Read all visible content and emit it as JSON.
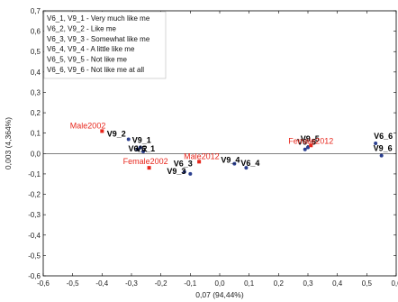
{
  "chart_data": {
    "type": "scatter",
    "xlabel": "0,07 (94,44%)",
    "ylabel": "0,003 (4,364%)",
    "xlim": [
      -0.6,
      0.6
    ],
    "ylim": [
      -0.6,
      0.7
    ],
    "x_ticks": [
      "-0,6",
      "-0,5",
      "-0,4",
      "-0,3",
      "-0,2",
      "-0,1",
      "0,0",
      "0,1",
      "0,2",
      "0,3",
      "0,4",
      "0,5",
      "0,6"
    ],
    "y_ticks": [
      "0,7",
      "0,6",
      "0,5",
      "0,4",
      "0,3",
      "0,2",
      "0,1",
      "0,0",
      "-0,1",
      "-0,2",
      "-0,3",
      "-0,4",
      "-0,5",
      "-0,6"
    ],
    "grid": false,
    "legend": {
      "placement": "top-left",
      "entries": [
        "V6_1, V9_1 - Very much like me",
        "V6_2, V9_2 - Like me",
        "V6_3, V9_3 - Somewhat like me",
        "V6_4, V9_4 - A little like me",
        "V6_5, V9_5 - Not like me",
        "V6_6, V9_6 - Not like me at all"
      ]
    },
    "series": [
      {
        "name": "",
        "color": "#2b3f8f",
        "marker": "circle",
        "points": [
          {
            "label": "V9_2",
            "x": -0.31,
            "y": 0.07
          },
          {
            "label": "V9_1",
            "x": -0.27,
            "y": 0.03
          },
          {
            "label": "V6_2",
            "x": -0.28,
            "y": 0.02
          },
          {
            "label": "V6_1",
            "x": -0.26,
            "y": 0.01
          },
          {
            "label": "V6_3",
            "x": -0.12,
            "y": -0.09
          },
          {
            "label": "V9_3",
            "x": -0.1,
            "y": -0.1
          },
          {
            "label": "V9_4",
            "x": 0.05,
            "y": -0.05
          },
          {
            "label": "V6_4",
            "x": 0.09,
            "y": -0.07
          },
          {
            "label": "V9_5",
            "x": 0.29,
            "y": 0.02
          },
          {
            "label": "V6_5",
            "x": 0.3,
            "y": 0.03
          },
          {
            "label": "V6_6",
            "x": 0.53,
            "y": 0.05
          },
          {
            "label": "V9_6",
            "x": 0.55,
            "y": -0.01
          }
        ]
      },
      {
        "name": "",
        "color": "#e8281e",
        "marker": "square",
        "points": [
          {
            "label": "Male2002",
            "x": -0.4,
            "y": 0.11
          },
          {
            "label": "Female2002",
            "x": -0.24,
            "y": -0.07
          },
          {
            "label": "Male2012",
            "x": -0.07,
            "y": -0.04
          },
          {
            "label": "Female2012",
            "x": 0.31,
            "y": 0.04
          }
        ]
      }
    ]
  }
}
